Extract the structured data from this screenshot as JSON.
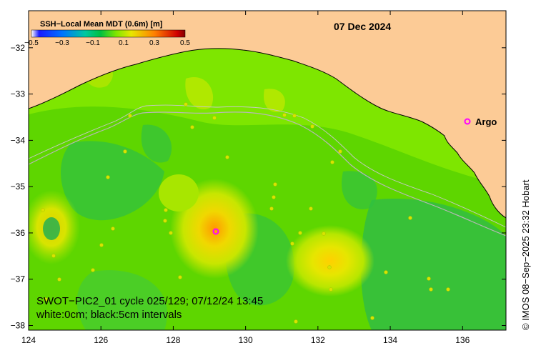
{
  "map": {
    "date": "07 Dec 2024",
    "colorbar": {
      "title": "SSH−Local Mean MDT (0.6m) [m]",
      "ticks": [
        "−0.5",
        "−0.3",
        "−0.1",
        "0.1",
        "0.3",
        "0.5"
      ],
      "range": [
        -0.5,
        0.5
      ]
    },
    "x_ticks": [
      "124",
      "126",
      "128",
      "130",
      "132",
      "134",
      "136"
    ],
    "y_ticks": [
      "−32",
      "−33",
      "−34",
      "−35",
      "−36",
      "−37",
      "−38"
    ],
    "argo_label": "Argo",
    "caption_line1": "SWOT−PIC2_01 cycle 025/129; 07/12/24 13:45",
    "caption_line2": "white:0cm; black:5cm intervals",
    "credit": "© IMOS 08−Sep−2025 23:32 Hobart",
    "colors": {
      "land": "#fccb96",
      "ocean_base": "#7ee600",
      "positive_anomaly": "#e8e600",
      "negative_anomaly": "#00b050",
      "argo_marker": "#ff00ff"
    }
  }
}
